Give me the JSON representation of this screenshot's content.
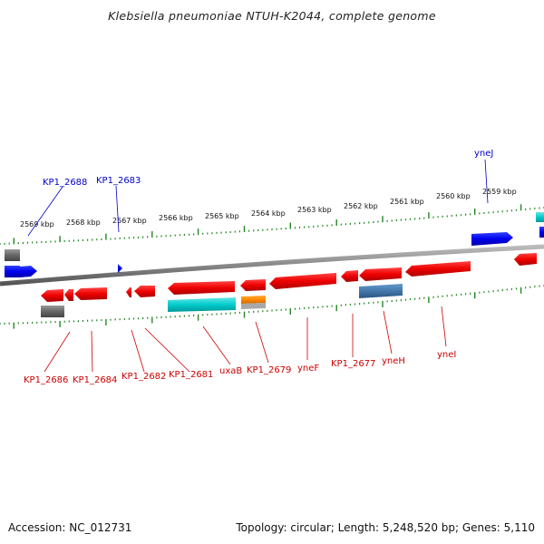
{
  "title": "Klebsiella pneumoniae NTUH-K2044, complete genome",
  "footer": {
    "accession": "Accession: NC_012731",
    "topology": "Topology: circular; Length: 5,248,520 bp; Genes: 5,110"
  },
  "colors": {
    "forward_label": "#0000cc",
    "reverse_label": "#cc0000",
    "tick": "#228822",
    "backbone": "#888888",
    "red_gene": "#ee0000",
    "blue_gene": "#0000ee",
    "cyan_gene": "#00cccc",
    "gray_gene": "#666666",
    "orange_gene": "#ff8800",
    "steel_gene": "#4477aa"
  },
  "scale_labels": [
    "2569 kbp",
    "2568 kbp",
    "2567 kbp",
    "2566 kbp",
    "2565 kbp",
    "2564 kbp",
    "2563 kbp",
    "2562 kbp",
    "2561 kbp",
    "2560 kbp",
    "2559 kbp"
  ],
  "forward_gene_labels": [
    "KP1_2688",
    "KP1_2683",
    "yneJ"
  ],
  "reverse_gene_labels": [
    "KP1_2686",
    "KP1_2684",
    "KP1_2682",
    "KP1_2681",
    "uxaB",
    "KP1_2679",
    "yneF",
    "KP1_2677",
    "yneH",
    "yneI"
  ]
}
